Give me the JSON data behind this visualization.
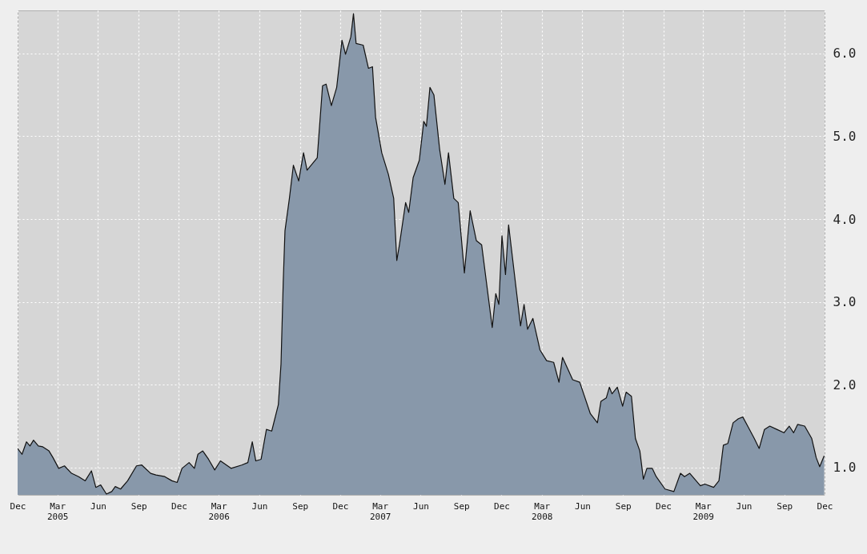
{
  "chart_data": {
    "type": "area",
    "x": [
      "2004-12-01",
      "2004-12-11",
      "2004-12-21",
      "2004-12-29",
      "2005-01-06",
      "2005-01-17",
      "2005-01-27",
      "2005-02-10",
      "2005-02-19",
      "2005-03-04",
      "2005-03-17",
      "2005-04-02",
      "2005-04-18",
      "2005-05-03",
      "2005-05-17",
      "2005-05-27",
      "2005-06-07",
      "2005-06-20",
      "2005-07-02",
      "2005-07-10",
      "2005-07-22",
      "2005-08-07",
      "2005-08-27",
      "2005-09-08",
      "2005-09-28",
      "2005-10-10",
      "2005-10-30",
      "2005-11-15",
      "2005-11-27",
      "2005-12-08",
      "2005-12-24",
      "2006-01-05",
      "2006-01-13",
      "2006-01-24",
      "2006-02-06",
      "2006-02-20",
      "2006-03-05",
      "2006-03-29",
      "2006-04-22",
      "2006-05-06",
      "2006-05-16",
      "2006-05-24",
      "2006-06-05",
      "2006-06-17",
      "2006-06-29",
      "2006-07-14",
      "2006-07-20",
      "2006-07-25",
      "2006-07-29",
      "2006-08-08",
      "2006-08-17",
      "2006-08-29",
      "2006-09-09",
      "2006-09-17",
      "2006-10-10",
      "2006-10-22",
      "2006-10-30",
      "2006-11-11",
      "2006-11-23",
      "2006-12-05",
      "2006-12-13",
      "2006-12-25",
      "2006-12-31",
      "2007-01-06",
      "2007-01-22",
      "2007-02-03",
      "2007-02-12",
      "2007-02-19",
      "2007-03-05",
      "2007-03-20",
      "2007-04-01",
      "2007-04-08",
      "2007-04-14",
      "2007-04-28",
      "2007-05-05",
      "2007-05-15",
      "2007-05-29",
      "2007-06-08",
      "2007-06-14",
      "2007-06-22",
      "2007-07-01",
      "2007-07-14",
      "2007-07-26",
      "2007-08-03",
      "2007-08-15",
      "2007-08-25",
      "2007-09-08",
      "2007-09-21",
      "2007-10-05",
      "2007-10-17",
      "2007-11-10",
      "2007-11-18",
      "2007-11-25",
      "2007-12-02",
      "2007-12-10",
      "2007-12-17",
      "2008-01-13",
      "2008-01-21",
      "2008-01-29",
      "2008-02-10",
      "2008-02-26",
      "2008-03-12",
      "2008-03-28",
      "2008-04-09",
      "2008-04-17",
      "2008-05-10",
      "2008-05-26",
      "2008-06-19",
      "2008-07-05",
      "2008-07-13",
      "2008-07-25",
      "2008-08-01",
      "2008-08-07",
      "2008-08-19",
      "2008-08-31",
      "2008-09-08",
      "2008-09-20",
      "2008-09-29",
      "2008-10-09",
      "2008-10-17",
      "2008-10-25",
      "2008-11-06",
      "2008-11-15",
      "2008-12-05",
      "2008-12-25",
      "2009-01-09",
      "2009-01-18",
      "2009-01-30",
      "2009-02-23",
      "2009-03-05",
      "2009-03-25",
      "2009-04-06",
      "2009-04-16",
      "2009-04-26",
      "2009-05-08",
      "2009-05-20",
      "2009-05-30",
      "2009-06-12",
      "2009-06-25",
      "2009-07-06",
      "2009-07-18",
      "2009-07-30",
      "2009-08-15",
      "2009-08-31",
      "2009-09-12",
      "2009-09-22",
      "2009-10-01",
      "2009-10-17",
      "2009-11-02",
      "2009-11-12",
      "2009-11-20",
      "2009-11-30"
    ],
    "series": [
      {
        "color": "#8898aa",
        "values": [
          1.23,
          1.16,
          1.31,
          1.26,
          1.33,
          1.26,
          1.25,
          1.2,
          1.12,
          0.99,
          1.02,
          0.93,
          0.89,
          0.84,
          0.96,
          0.76,
          0.79,
          0.68,
          0.71,
          0.77,
          0.74,
          0.84,
          1.02,
          1.03,
          0.93,
          0.91,
          0.89,
          0.84,
          0.82,
          0.99,
          1.06,
          0.99,
          1.16,
          1.2,
          1.1,
          0.97,
          1.08,
          0.99,
          1.03,
          1.06,
          1.31,
          1.08,
          1.1,
          1.46,
          1.44,
          1.76,
          2.25,
          3.23,
          3.86,
          4.25,
          4.65,
          4.46,
          4.8,
          4.59,
          4.74,
          5.61,
          5.63,
          5.37,
          5.59,
          6.16,
          5.99,
          6.2,
          6.48,
          6.12,
          6.1,
          5.82,
          5.84,
          5.23,
          4.8,
          4.54,
          4.25,
          3.5,
          3.69,
          4.2,
          4.08,
          4.5,
          4.71,
          5.18,
          5.12,
          5.59,
          5.5,
          4.84,
          4.42,
          4.8,
          4.25,
          4.2,
          3.35,
          4.1,
          3.74,
          3.69,
          2.69,
          3.1,
          2.97,
          3.8,
          3.33,
          3.93,
          2.71,
          2.97,
          2.67,
          2.8,
          2.42,
          2.29,
          2.27,
          2.03,
          2.33,
          2.06,
          2.03,
          1.65,
          1.54,
          1.8,
          1.84,
          1.97,
          1.89,
          1.97,
          1.74,
          1.91,
          1.86,
          1.35,
          1.2,
          0.86,
          0.99,
          0.99,
          0.89,
          0.74,
          0.71,
          0.93,
          0.89,
          0.93,
          0.78,
          0.8,
          0.76,
          0.84,
          1.27,
          1.29,
          1.54,
          1.59,
          1.61,
          1.48,
          1.35,
          1.23,
          1.46,
          1.5,
          1.46,
          1.42,
          1.5,
          1.42,
          1.52,
          1.5,
          1.35,
          1.12,
          1.01,
          1.14
        ]
      }
    ],
    "xlim": [
      "2004-12-01",
      "2009-12-01"
    ],
    "xticks": [
      {
        "value": "2004-12-01",
        "label": "Dec"
      },
      {
        "value": "2005-03-01",
        "label": "Mar\n2005"
      },
      {
        "value": "2005-06-01",
        "label": "Jun"
      },
      {
        "value": "2005-09-01",
        "label": "Sep"
      },
      {
        "value": "2005-12-01",
        "label": "Dec"
      },
      {
        "value": "2006-03-01",
        "label": "Mar\n2006"
      },
      {
        "value": "2006-06-01",
        "label": "Jun"
      },
      {
        "value": "2006-09-01",
        "label": "Sep"
      },
      {
        "value": "2006-12-01",
        "label": "Dec"
      },
      {
        "value": "2007-03-01",
        "label": "Mar\n2007"
      },
      {
        "value": "2007-06-01",
        "label": "Jun"
      },
      {
        "value": "2007-09-01",
        "label": "Sep"
      },
      {
        "value": "2007-12-01",
        "label": "Dec"
      },
      {
        "value": "2008-03-01",
        "label": "Mar\n2008"
      },
      {
        "value": "2008-06-01",
        "label": "Jun"
      },
      {
        "value": "2008-09-01",
        "label": "Sep"
      },
      {
        "value": "2008-12-01",
        "label": "Dec"
      },
      {
        "value": "2009-03-01",
        "label": "Mar\n2009"
      },
      {
        "value": "2009-06-01",
        "label": "Jun"
      },
      {
        "value": "2009-09-01",
        "label": "Sep"
      },
      {
        "value": "2009-12-01",
        "label": "Dec"
      }
    ],
    "ylim": [
      0.67,
      6.52
    ],
    "yticks": [
      {
        "value": 1,
        "label": "1.0"
      },
      {
        "value": 2,
        "label": "2.0"
      },
      {
        "value": 3,
        "label": "3.0"
      },
      {
        "value": 4,
        "label": "4.0"
      },
      {
        "value": 5,
        "label": "5.0"
      },
      {
        "value": 6,
        "label": "6.0"
      }
    ],
    "grid": true
  }
}
